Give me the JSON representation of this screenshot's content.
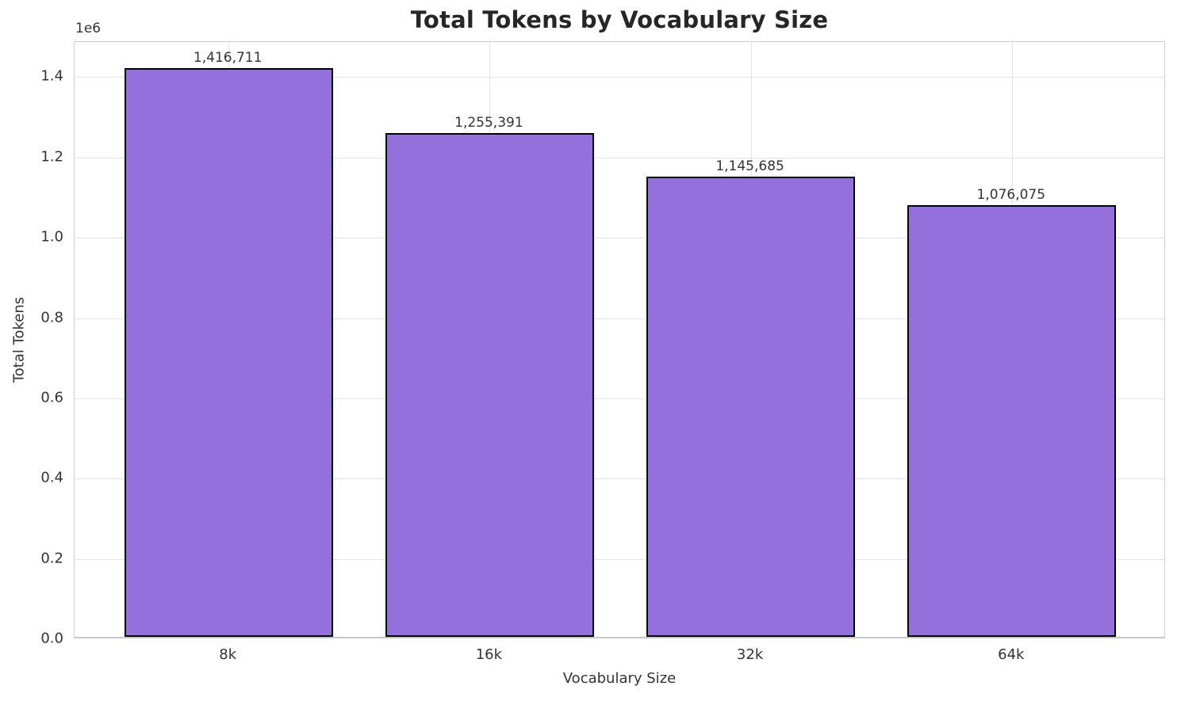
{
  "chart_data": {
    "type": "bar",
    "title": "Total Tokens by Vocabulary Size",
    "xlabel": "Vocabulary Size",
    "ylabel": "Total Tokens",
    "categories": [
      "8k",
      "16k",
      "32k",
      "64k"
    ],
    "values": [
      1416711,
      1255391,
      1145685,
      1076075
    ],
    "bar_labels": [
      "1,416,711",
      "1,255,391",
      "1,145,685",
      "1,076,075"
    ],
    "ylim": [
      0,
      1487547
    ],
    "yticks": [
      0,
      200000,
      400000,
      600000,
      800000,
      1000000,
      1200000,
      1400000
    ],
    "ytick_labels": [
      "0.0",
      "0.2",
      "0.4",
      "0.6",
      "0.8",
      "1.0",
      "1.2",
      "1.4"
    ],
    "y_offset_text": "1e6",
    "grid": true,
    "legend_position": "none",
    "colors": {
      "bar_fill": "#9370DB",
      "bar_edge": "#000000",
      "grid": "#e4e4e4",
      "spine": "#d0d0d0",
      "text": "#333333",
      "title_text": "#262626",
      "background": "#ffffff"
    }
  }
}
